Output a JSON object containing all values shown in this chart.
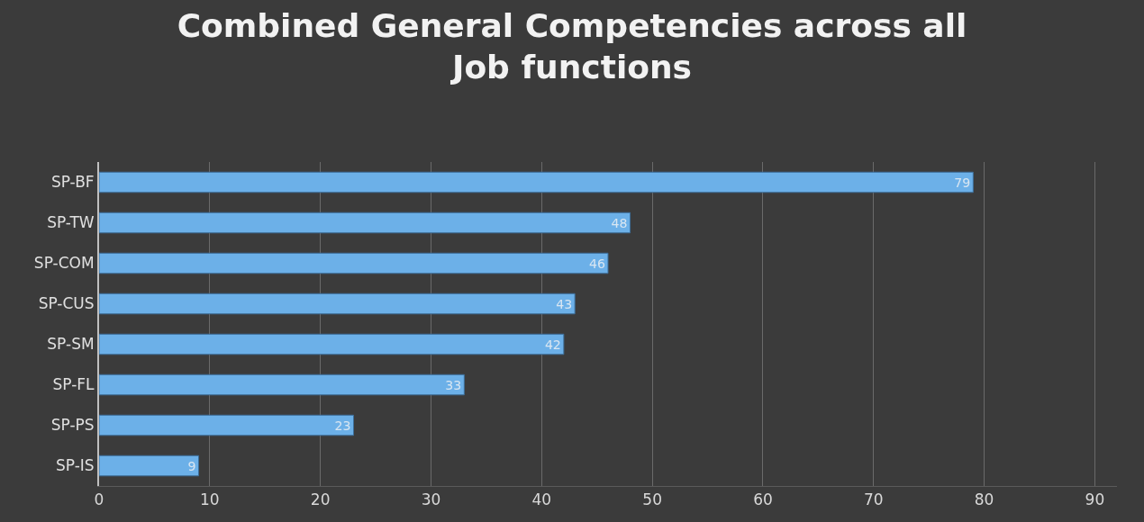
{
  "chart_data": {
    "type": "bar",
    "orientation": "horizontal",
    "title": "Combined General Competencies across all Job functions",
    "categories": [
      "SP-BF",
      "SP-TW",
      "SP-COM",
      "SP-CUS",
      "SP-SM",
      "SP-FL",
      "SP-PS",
      "SP-IS"
    ],
    "values": [
      79,
      48,
      46,
      43,
      42,
      33,
      23,
      9
    ],
    "color": "#6cb0e8",
    "xlim": [
      0,
      92
    ],
    "xticks": [
      0,
      10,
      20,
      30,
      40,
      50,
      60,
      70,
      80,
      90
    ],
    "grid": "x",
    "data_labels": true
  }
}
